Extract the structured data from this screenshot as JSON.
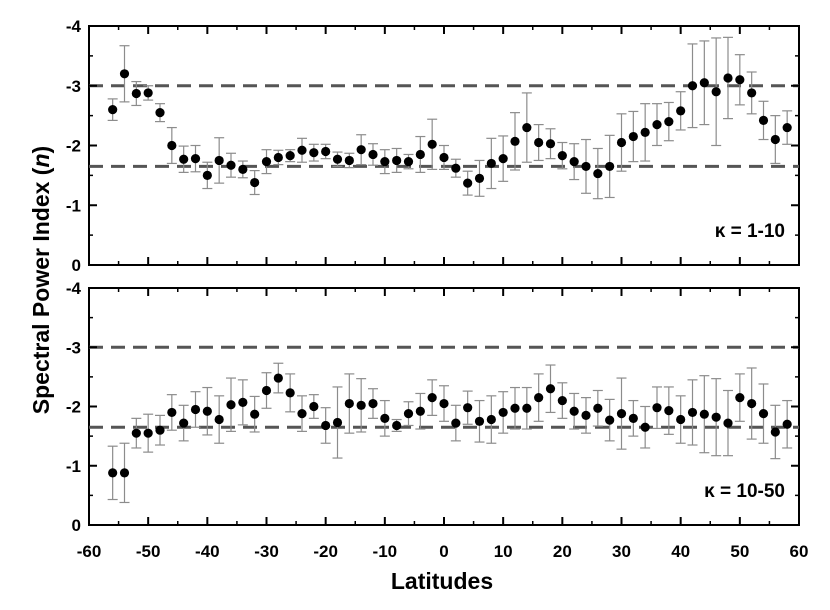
{
  "chart_data": [
    {
      "type": "scatter",
      "panel_label": "κ = 1-10",
      "x": [
        -56,
        -54,
        -52,
        -50,
        -48,
        -46,
        -44,
        -42,
        -40,
        -38,
        -36,
        -34,
        -32,
        -30,
        -28,
        -26,
        -24,
        -22,
        -20,
        -18,
        -16,
        -14,
        -12,
        -10,
        -8,
        -6,
        -4,
        -2,
        0,
        2,
        4,
        6,
        8,
        10,
        12,
        14,
        16,
        18,
        20,
        22,
        24,
        26,
        28,
        30,
        32,
        34,
        36,
        38,
        40,
        42,
        44,
        46,
        48,
        50,
        52,
        54,
        56,
        58
      ],
      "y": [
        -2.6,
        -3.2,
        -2.87,
        -2.88,
        -2.55,
        -2.0,
        -1.77,
        -1.78,
        -1.5,
        -1.75,
        -1.67,
        -1.6,
        -1.38,
        -1.73,
        -1.8,
        -1.83,
        -1.92,
        -1.88,
        -1.9,
        -1.77,
        -1.75,
        -1.93,
        -1.85,
        -1.73,
        -1.75,
        -1.73,
        -1.85,
        -2.02,
        -1.8,
        -1.62,
        -1.37,
        -1.45,
        -1.7,
        -1.78,
        -2.07,
        -2.3,
        -2.05,
        -2.03,
        -1.83,
        -1.73,
        -1.65,
        -1.53,
        -1.65,
        -2.05,
        -2.15,
        -2.22,
        -2.35,
        -2.4,
        -2.58,
        -3.0,
        -3.05,
        -2.9,
        -3.13,
        -3.1,
        -2.88,
        -2.42,
        -2.1,
        -2.3
      ],
      "err": [
        0.18,
        0.47,
        0.2,
        0.12,
        0.15,
        0.3,
        0.22,
        0.22,
        0.22,
        0.38,
        0.2,
        0.14,
        0.2,
        0.2,
        0.12,
        0.1,
        0.2,
        0.14,
        0.12,
        0.12,
        0.12,
        0.25,
        0.18,
        0.2,
        0.2,
        0.12,
        0.3,
        0.42,
        0.2,
        0.15,
        0.2,
        0.3,
        0.42,
        0.38,
        0.48,
        0.58,
        0.3,
        0.25,
        0.22,
        0.3,
        0.45,
        0.42,
        0.52,
        0.48,
        0.42,
        0.48,
        0.35,
        0.32,
        0.32,
        0.7,
        0.7,
        0.9,
        0.68,
        0.42,
        0.35,
        0.32,
        0.4,
        0.28
      ],
      "hlines": [
        -3.0,
        -1.65
      ],
      "ylim": [
        0,
        -4
      ],
      "yticks": [
        0,
        -1,
        -2,
        -3,
        -4
      ],
      "xlim": [
        -60,
        60
      ]
    },
    {
      "type": "scatter",
      "panel_label": "κ = 10-50",
      "x": [
        -56,
        -54,
        -52,
        -50,
        -48,
        -46,
        -44,
        -42,
        -40,
        -38,
        -36,
        -34,
        -32,
        -30,
        -28,
        -26,
        -24,
        -22,
        -20,
        -18,
        -16,
        -14,
        -12,
        -10,
        -8,
        -6,
        -4,
        -2,
        0,
        2,
        4,
        6,
        8,
        10,
        12,
        14,
        16,
        18,
        20,
        22,
        24,
        26,
        28,
        30,
        32,
        34,
        36,
        38,
        40,
        42,
        44,
        46,
        48,
        50,
        52,
        54,
        56,
        58
      ],
      "y": [
        -0.88,
        -0.88,
        -1.55,
        -1.55,
        -1.6,
        -1.9,
        -1.72,
        -1.95,
        -1.92,
        -1.78,
        -2.03,
        -2.07,
        -1.87,
        -2.27,
        -2.48,
        -2.23,
        -1.88,
        -2.0,
        -1.68,
        -1.73,
        -2.05,
        -2.02,
        -2.05,
        -1.8,
        -1.68,
        -1.88,
        -1.92,
        -2.15,
        -2.05,
        -1.72,
        -1.98,
        -1.75,
        -1.78,
        -1.9,
        -1.97,
        -1.97,
        -2.15,
        -2.3,
        -2.1,
        -1.92,
        -1.85,
        -1.97,
        -1.77,
        -1.88,
        -1.8,
        -1.65,
        -1.98,
        -1.93,
        -1.78,
        -1.9,
        -1.87,
        -1.82,
        -1.72,
        -2.15,
        -2.05,
        -1.88,
        -1.57,
        -1.7
      ],
      "err": [
        0.45,
        0.5,
        0.25,
        0.32,
        0.25,
        0.3,
        0.3,
        0.3,
        0.4,
        0.4,
        0.45,
        0.38,
        0.3,
        0.3,
        0.25,
        0.32,
        0.3,
        0.2,
        0.3,
        0.6,
        0.5,
        0.45,
        0.25,
        0.3,
        0.1,
        0.2,
        0.3,
        0.3,
        0.3,
        0.3,
        0.28,
        0.35,
        0.4,
        0.35,
        0.35,
        0.35,
        0.4,
        0.4,
        0.3,
        0.3,
        0.3,
        0.3,
        0.35,
        0.6,
        0.3,
        0.35,
        0.35,
        0.4,
        0.4,
        0.55,
        0.65,
        0.65,
        0.55,
        0.4,
        0.6,
        0.5,
        0.45,
        0.4
      ],
      "hlines": [
        -3.0,
        -1.65
      ],
      "ylim": [
        0,
        -4
      ],
      "yticks": [
        0,
        -1,
        -2,
        -3,
        -4
      ],
      "xlim": [
        -60,
        60
      ]
    }
  ],
  "xticks": [
    -60,
    -50,
    -40,
    -30,
    -20,
    -10,
    0,
    10,
    20,
    30,
    40,
    50,
    60
  ],
  "xlabel": "Latitudes",
  "ylabel_main": "Spectral Power Index (",
  "ylabel_var": "n",
  "ylabel_close": ")",
  "colors": {
    "marker": "#000000",
    "errorbar": "#8c8c8c",
    "dashed": "#555555",
    "frame": "#000000"
  }
}
